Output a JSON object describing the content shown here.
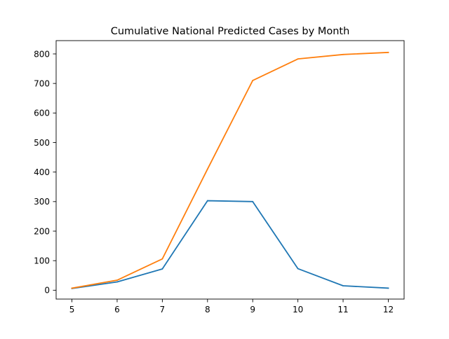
{
  "chart_data": {
    "type": "line",
    "title": "Cumulative National Predicted Cases by Month",
    "x": [
      5,
      6,
      7,
      8,
      9,
      10,
      11,
      12
    ],
    "xticks": [
      "5",
      "6",
      "7",
      "8",
      "9",
      "10",
      "11",
      "12"
    ],
    "yticks": [
      "0",
      "100",
      "200",
      "300",
      "400",
      "500",
      "600",
      "700",
      "800"
    ],
    "xlim": [
      4.65,
      12.35
    ],
    "ylim": [
      -30,
      845
    ],
    "grid": false,
    "series": [
      {
        "color": "#1f77b4",
        "values": [
          6,
          28,
          72,
          303,
          300,
          73,
          15,
          7
        ]
      },
      {
        "color": "#ff7f0e",
        "values": [
          7,
          34,
          106,
          410,
          710,
          783,
          798,
          805
        ]
      }
    ]
  }
}
